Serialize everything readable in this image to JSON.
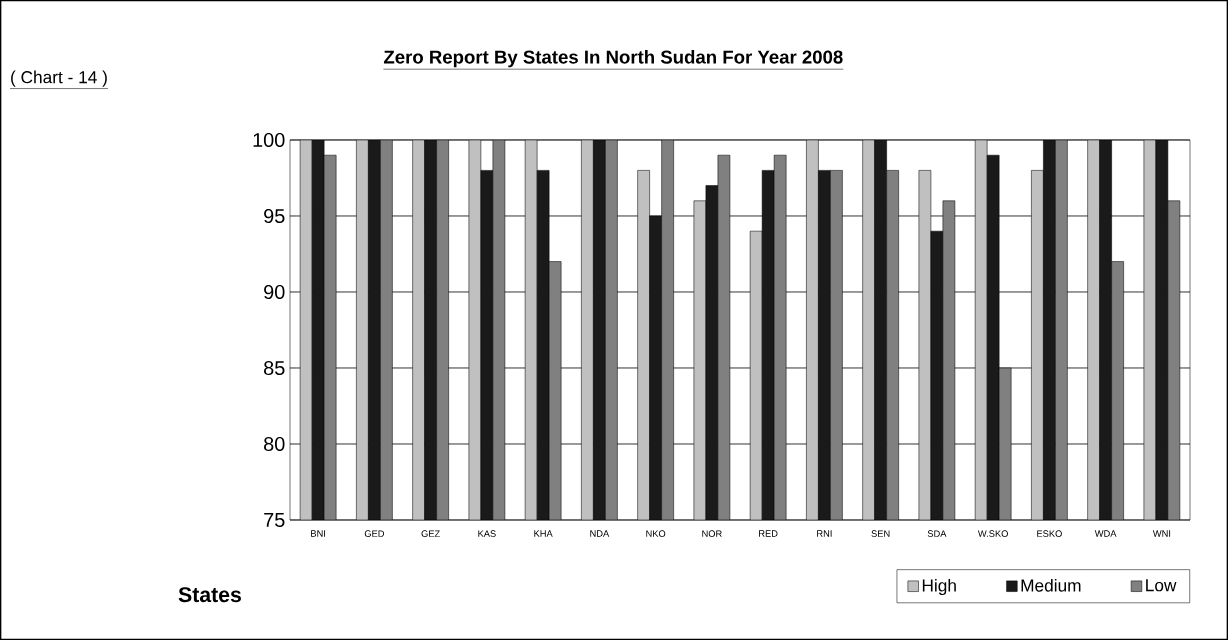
{
  "chart_data": {
    "type": "bar",
    "title": "Zero Report By States In North Sudan For Year 2008",
    "annotations": [
      "( Chart - 14 )"
    ],
    "xlabel": "States",
    "categories": [
      "BNI",
      "GED",
      "GEZ",
      "KAS",
      "KHA",
      "NDA",
      "NKO",
      "NOR",
      "RED",
      "RNI",
      "SEN",
      "SDA",
      "W.SKO",
      "ESKO",
      "WDA",
      "WNI"
    ],
    "series": [
      {
        "name": "High",
        "color": "#c0c0c0",
        "values": [
          100,
          100,
          100,
          100,
          100,
          100,
          98,
          96,
          94,
          100,
          100,
          98,
          100,
          98,
          100,
          100
        ]
      },
      {
        "name": "Medium",
        "color": "#1a1a1a",
        "values": [
          100,
          100,
          100,
          98,
          98,
          100,
          95,
          97,
          98,
          98,
          100,
          94,
          99,
          100,
          100,
          100
        ]
      },
      {
        "name": "Low",
        "color": "#808080",
        "values": [
          99,
          100,
          100,
          100,
          92,
          100,
          100,
          99,
          99,
          98,
          98,
          96,
          85,
          100,
          92,
          96
        ]
      }
    ],
    "ylim": [
      75,
      100
    ],
    "yticks": [
      75,
      80,
      85,
      90,
      95,
      100
    ],
    "grid": "y",
    "legend": "bottom right"
  }
}
